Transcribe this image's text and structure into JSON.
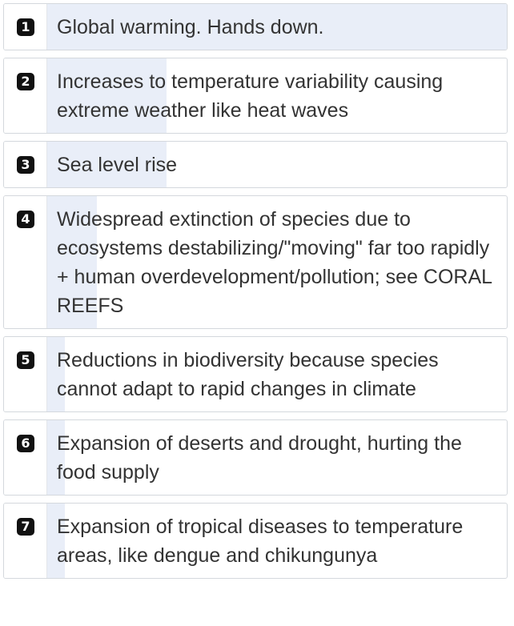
{
  "items": [
    {
      "rank": "1",
      "label": "Global warming. Hands down.",
      "share": 1.0
    },
    {
      "rank": "2",
      "label": "Increases to temperature variability causing extreme weather like heat waves",
      "share": 0.26
    },
    {
      "rank": "3",
      "label": "Sea level rise",
      "share": 0.26
    },
    {
      "rank": "4",
      "label": "Widespread extinction of species due to ecosystems destabilizing/\"moving\" far too rapidly + human overdevelopment/pollution; see CORAL REEFS",
      "share": 0.11
    },
    {
      "rank": "5",
      "label": "Reductions in biodiversity because species cannot adapt to rapid changes in climate",
      "share": 0.04
    },
    {
      "rank": "6",
      "label": "Expansion of deserts and drought, hurting the food supply",
      "share": 0.04
    },
    {
      "rank": "7",
      "label": "Expansion of tropical diseases to temperature areas, like dengue and chikungunya",
      "share": 0.04
    }
  ]
}
